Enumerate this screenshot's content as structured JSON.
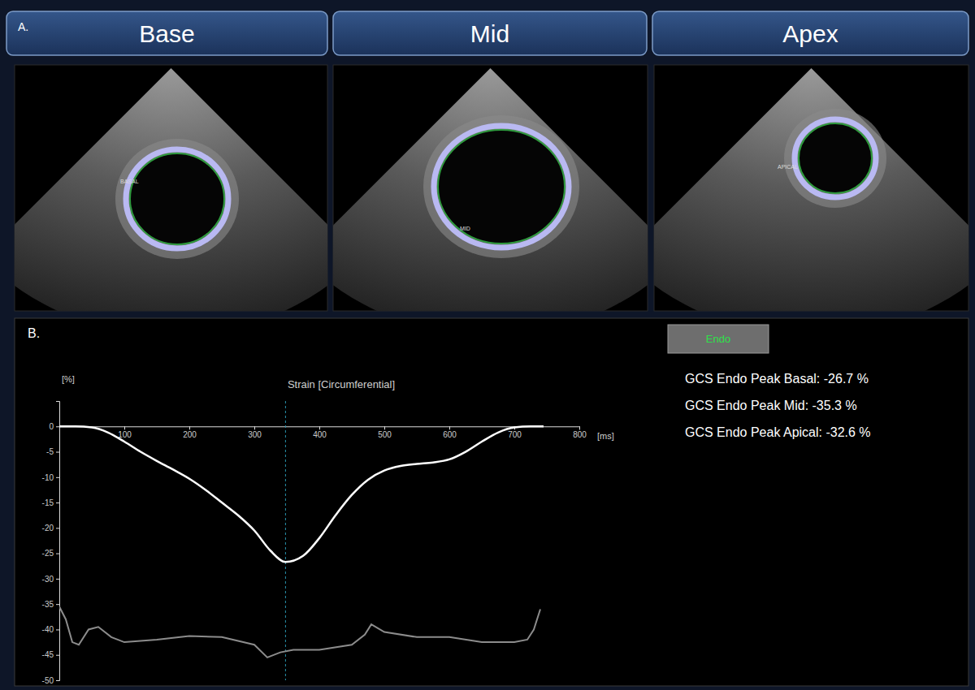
{
  "chart_data": {
    "type": "line",
    "title": "Strain [Circumferential]",
    "y_label": "[%]",
    "x_label": "[ms]",
    "xlim": [
      0,
      800
    ],
    "ylim": [
      -50,
      5
    ],
    "xticks": [
      100,
      200,
      300,
      400,
      500,
      600,
      700,
      800
    ],
    "yticks": [
      0,
      -5,
      -10,
      -15,
      -20,
      -25,
      -30,
      -35,
      -40,
      -45,
      -50
    ],
    "grid": false,
    "tick_labels": true,
    "cursor_x": 348,
    "series": [
      {
        "color": "#ffffff",
        "line_style": "solid",
        "x": [
          0,
          25,
          50,
          75,
          100,
          125,
          150,
          175,
          200,
          225,
          250,
          275,
          300,
          325,
          348,
          375,
          400,
          425,
          450,
          475,
          500,
          525,
          550,
          575,
          600,
          625,
          650,
          675,
          700,
          725,
          745
        ],
        "values": [
          0,
          0,
          -0.2,
          -1.2,
          -3,
          -5,
          -6.8,
          -8.5,
          -10.3,
          -12.5,
          -15,
          -17.5,
          -20.5,
          -24.5,
          -26.7,
          -25.5,
          -22,
          -17.5,
          -13.5,
          -10.5,
          -8.7,
          -7.8,
          -7.4,
          -7.1,
          -6.5,
          -5,
          -3,
          -1.2,
          -0.2,
          0,
          0
        ]
      },
      {
        "color": "#8c8c8c",
        "line_style": "solid",
        "x": [
          0,
          10,
          20,
          30,
          45,
          60,
          80,
          100,
          150,
          200,
          250,
          300,
          320,
          340,
          360,
          400,
          450,
          470,
          480,
          500,
          550,
          600,
          650,
          700,
          720,
          730,
          740
        ],
        "values": [
          -35.5,
          -38,
          -42.5,
          -43,
          -40,
          -39.5,
          -41.5,
          -42.5,
          -42,
          -41.3,
          -41.5,
          -43,
          -45.5,
          -44.5,
          -44,
          -44,
          -43,
          -41,
          -39,
          -40.5,
          -41.5,
          -41.5,
          -42.5,
          -42.5,
          -42,
          -40,
          -36
        ]
      }
    ]
  },
  "panel_a": {
    "label": "A.",
    "views": [
      {
        "title": "Base",
        "tag": "BASAL"
      },
      {
        "title": "Mid",
        "tag": "MID"
      },
      {
        "title": "Apex",
        "tag": "APICAL"
      }
    ]
  },
  "panel_b": {
    "label": "B.",
    "mode": "Endo",
    "results": [
      "GCS Endo Peak Basal: -26.7 %",
      "GCS Endo Peak Mid: -35.3 %",
      "GCS Endo Peak Apical: -32.6 %"
    ]
  }
}
